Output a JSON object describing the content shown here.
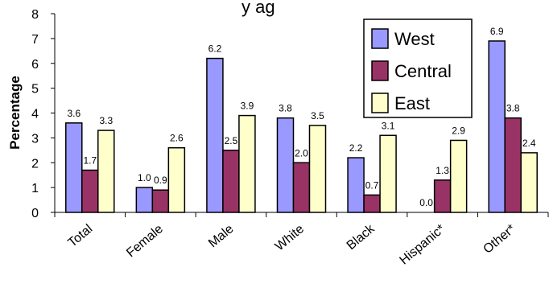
{
  "chart_data": {
    "type": "bar",
    "title": "",
    "xlabel": "",
    "ylabel": "Percentage",
    "ylim": [
      0,
      8
    ],
    "yticks": [
      0,
      1,
      2,
      3,
      4,
      5,
      6,
      7,
      8
    ],
    "categories": [
      "Total",
      "Female",
      "Male",
      "White",
      "Black",
      "Hispanic*",
      "Other*"
    ],
    "series": [
      {
        "name": "West",
        "color": "#9999ff",
        "values": [
          3.6,
          1.0,
          6.2,
          3.8,
          2.2,
          0.0,
          6.9
        ],
        "labels": [
          "3.6",
          "1.0",
          "6.2",
          "3.8",
          "2.2",
          "0.0",
          "6.9"
        ]
      },
      {
        "name": "Central",
        "color": "#993366",
        "values": [
          1.7,
          0.9,
          2.5,
          2.0,
          0.7,
          1.3,
          3.8
        ],
        "labels": [
          "1.7",
          "0.9",
          "2.5",
          "2.0",
          "0.7",
          "1.3",
          "3.8"
        ]
      },
      {
        "name": "East",
        "color": "#ffffcc",
        "values": [
          3.3,
          2.6,
          3.9,
          3.5,
          3.1,
          2.9,
          2.4
        ],
        "labels": [
          "3.3",
          "2.6",
          "3.9",
          "3.5",
          "3.1",
          "2.9",
          "2.4"
        ]
      }
    ],
    "grid": false,
    "legend": "top-right",
    "partial_title_fragment": "y ag"
  }
}
